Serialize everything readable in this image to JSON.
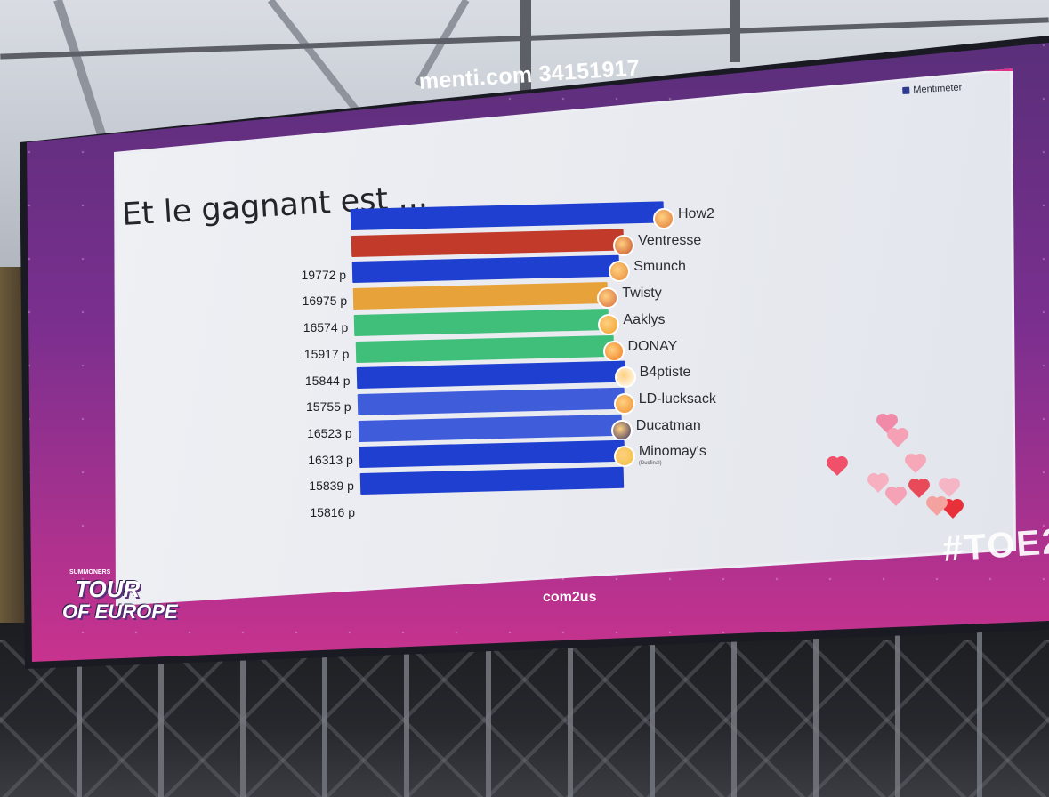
{
  "screen": {
    "header": "menti.com 34151917",
    "brand": "Mentimeter",
    "title": "Et le gagnant est ...",
    "hashtag": "#TOE2",
    "footer_brand": "com2us",
    "event_logo": {
      "top": "SUMMONERS",
      "line1": "TOUR",
      "line2": "OF EUROPE"
    }
  },
  "leaderboard": [
    {
      "name": "How2",
      "score": "",
      "color": "#1e3fcf"
    },
    {
      "name": "Ventresse",
      "score": "19772 p",
      "color": "#c23a2a"
    },
    {
      "name": "Smunch",
      "score": "16975 p",
      "color": "#1e3fcf"
    },
    {
      "name": "Twisty",
      "score": "16574 p",
      "color": "#e8a23a"
    },
    {
      "name": "Aaklys",
      "score": "15917 p",
      "color": "#3fbf7a"
    },
    {
      "name": "DONAY",
      "score": "15844 p",
      "color": "#3fbf7a"
    },
    {
      "name": "B4ptiste",
      "score": "15755 p",
      "color": "#1e3fcf"
    },
    {
      "name": "LD-lucksack",
      "score": "16523 p",
      "color": "#3f5cdb"
    },
    {
      "name": "Ducatman",
      "score": "16313 p",
      "color": "#3f5cdb"
    },
    {
      "name": "Minomay's",
      "score": "15839 p",
      "color": "#1e3fcf"
    },
    {
      "name": "",
      "score": "15816 p",
      "color": "#1e3fcf"
    }
  ],
  "minomay_sub": "(Ducfinal)",
  "colors": {
    "accent": "#e0308a",
    "screen_bg": "#7a2f8f"
  }
}
